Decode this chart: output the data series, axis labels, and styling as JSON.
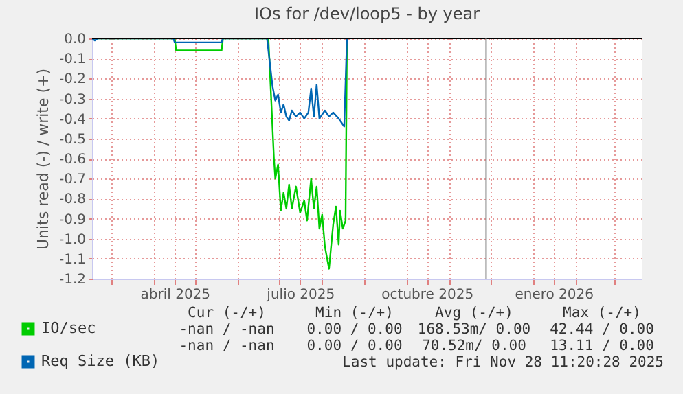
{
  "chart_data": {
    "type": "line",
    "title": "IOs for /dev/loop5 - by year",
    "ylabel": "Units read (-) / write (+)",
    "xlim": [
      "2025-02-15",
      "2026-03-21"
    ],
    "xticks": [
      {
        "value": "2025-03-01",
        "label": null
      },
      {
        "value": "2025-04-01",
        "label": null
      },
      {
        "value": "2025-04-16",
        "label": "abril 2025"
      },
      {
        "value": "2025-05-01",
        "label": null
      },
      {
        "value": "2025-06-01",
        "label": null
      },
      {
        "value": "2025-07-01",
        "label": null
      },
      {
        "value": "2025-07-16",
        "label": "julio 2025"
      },
      {
        "value": "2025-08-01",
        "label": null
      },
      {
        "value": "2025-09-01",
        "label": null
      },
      {
        "value": "2025-10-01",
        "label": null
      },
      {
        "value": "2025-10-16",
        "label": "octubre 2025"
      },
      {
        "value": "2025-11-01",
        "label": null
      },
      {
        "value": "2025-12-01",
        "label": null
      },
      {
        "value": "2026-01-01",
        "label": null
      },
      {
        "value": "2026-01-16",
        "label": "enero 2026"
      },
      {
        "value": "2026-02-01",
        "label": null
      },
      {
        "value": "2026-03-01",
        "label": null
      }
    ],
    "ylim": [
      -1.2,
      0
    ],
    "yticks": [
      {
        "value": 0,
        "label": "0.0"
      },
      {
        "value": -0.1,
        "label": "-0.1"
      },
      {
        "value": -0.2,
        "label": "-0.2"
      },
      {
        "value": -0.3,
        "label": "-0.3"
      },
      {
        "value": -0.4,
        "label": "-0.4"
      },
      {
        "value": -0.5,
        "label": "-0.5"
      },
      {
        "value": -0.6,
        "label": "-0.6"
      },
      {
        "value": -0.7,
        "label": "-0.7"
      },
      {
        "value": -0.8,
        "label": "-0.8"
      },
      {
        "value": -0.9,
        "label": "-0.9"
      },
      {
        "value": -1,
        "label": "-1.0"
      },
      {
        "value": -1.1,
        "label": "-1.1"
      },
      {
        "value": -1.2,
        "label": "-1.2"
      }
    ],
    "grid": true,
    "legend": "bottom",
    "line_style": "solid",
    "series": [
      {
        "name": "IO/sec",
        "color": "#00cc00",
        "x": [
          "2025-02-15",
          "2025-04-16",
          "2025-04-17",
          "2025-05-20",
          "2025-05-21",
          "2025-06-23",
          "2025-06-27",
          "2025-06-28",
          "2025-06-30",
          "2025-07-02",
          "2025-07-04",
          "2025-07-06",
          "2025-07-08",
          "2025-07-10",
          "2025-07-13",
          "2025-07-16",
          "2025-07-19",
          "2025-07-21",
          "2025-07-24",
          "2025-07-26",
          "2025-07-28",
          "2025-07-30",
          "2025-08-01",
          "2025-08-03",
          "2025-08-06",
          "2025-08-09",
          "2025-08-11",
          "2025-08-13",
          "2025-08-14",
          "2025-08-16",
          "2025-08-18",
          "2025-08-19"
        ],
        "values": [
          0,
          0,
          -0.06,
          -0.06,
          0,
          0,
          -0.6,
          -0.7,
          -0.63,
          -0.86,
          -0.77,
          -0.85,
          -0.73,
          -0.85,
          -0.74,
          -0.87,
          -0.81,
          -0.91,
          -0.7,
          -0.85,
          -0.74,
          -0.95,
          -0.88,
          -1.04,
          -1.15,
          -0.93,
          -0.84,
          -1.03,
          -0.86,
          -0.95,
          -0.91,
          0
        ]
      },
      {
        "name": "Req Size (KB)",
        "color": "#0066b3",
        "x": [
          "2025-02-15",
          "2025-02-17",
          "2025-02-19",
          "2025-04-15",
          "2025-04-16",
          "2025-04-25",
          "2025-05-05",
          "2025-05-20",
          "2025-05-21",
          "2025-06-22",
          "2025-06-26",
          "2025-06-28",
          "2025-06-30",
          "2025-07-02",
          "2025-07-04",
          "2025-07-06",
          "2025-07-08",
          "2025-07-10",
          "2025-07-13",
          "2025-07-16",
          "2025-07-19",
          "2025-07-22",
          "2025-07-24",
          "2025-07-26",
          "2025-07-28",
          "2025-07-30",
          "2025-08-03",
          "2025-08-06",
          "2025-08-09",
          "2025-08-13",
          "2025-08-15",
          "2025-08-17",
          "2025-08-19"
        ],
        "values": [
          0,
          -0.01,
          0,
          0,
          -0.02,
          -0.02,
          -0.02,
          -0.02,
          0,
          0,
          -0.24,
          -0.31,
          -0.28,
          -0.37,
          -0.33,
          -0.39,
          -0.41,
          -0.36,
          -0.39,
          -0.37,
          -0.4,
          -0.37,
          -0.25,
          -0.39,
          -0.23,
          -0.4,
          -0.36,
          -0.39,
          -0.37,
          -0.4,
          -0.42,
          -0.44,
          0
        ]
      }
    ],
    "ref_lines": [
      {
        "axis": "y",
        "value": 0,
        "color": "#000000"
      },
      {
        "axis": "x",
        "value": "2025-11-28",
        "color": "#888888"
      }
    ],
    "annotations": [
      "Cur (-/+)",
      "Min (-/+)",
      "Avg (-/+)",
      "Max (-/+)",
      "-nan / -nan",
      "0.00 / 0.00",
      "168.53m/ 0.00",
      "42.44 / 0.00",
      "-nan / -nan",
      "0.00 / 0.00",
      "70.52m/ 0.00",
      "13.11 / 0.00",
      "Last update: Fri Nov 28 11:20:28 2025"
    ]
  }
}
